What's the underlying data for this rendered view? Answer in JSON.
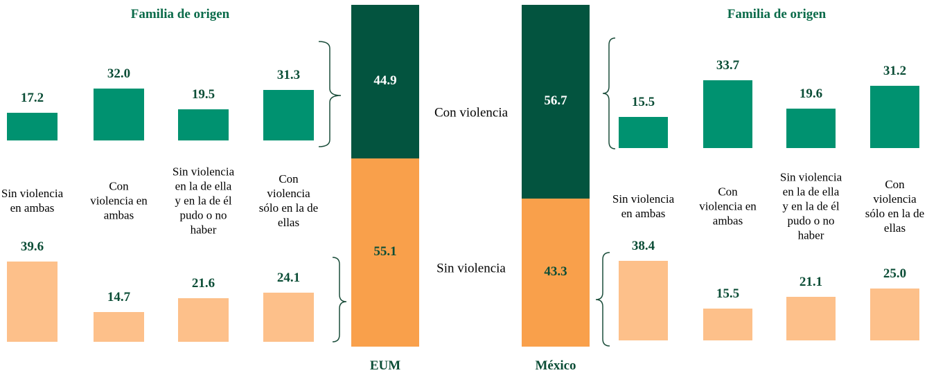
{
  "chart_data": [
    {
      "type": "bar",
      "title": "Familia de origen",
      "categories": [
        "Sin violencia en ambas",
        "Con violencia en ambas",
        "Sin violencia en la de ella y en la de él pudo o no haber",
        "Con violencia sólo en la de ellas"
      ],
      "series": [
        {
          "color": "#009270",
          "values": [
            17.2,
            32.0,
            19.5,
            31.3
          ],
          "value_labels": [
            "17.2",
            "32.0",
            "19.5",
            "31.3"
          ]
        },
        {
          "color": "#fdc08a",
          "values": [
            39.6,
            14.7,
            21.6,
            24.1
          ],
          "value_labels": [
            "39.6",
            "14.7",
            "21.6",
            "24.1"
          ]
        }
      ]
    },
    {
      "type": "stacked",
      "categories": [
        "EUM",
        "México"
      ],
      "ylim": [
        0,
        100
      ],
      "series": [
        {
          "name": "Con violencia",
          "color": "#03543f",
          "values": [
            44.9,
            56.7
          ]
        },
        {
          "name": "Sin violencia",
          "color": "#f9a04b",
          "values": [
            55.1,
            43.3
          ]
        }
      ]
    },
    {
      "type": "bar",
      "title": "Familia de origen",
      "categories": [
        "Sin violencia en ambas",
        "Con violencia en ambas",
        "Sin violencia en la de ella y en la de él pudo o no haber",
        "Con violencia sólo en la de ellas"
      ],
      "series": [
        {
          "color": "#009270",
          "values": [
            15.5,
            33.7,
            19.6,
            31.2
          ],
          "value_labels": [
            "15.5",
            "33.7",
            "19.6",
            "31.2"
          ]
        },
        {
          "color": "#fdc08a",
          "values": [
            38.4,
            15.5,
            21.1,
            25.0
          ],
          "value_labels": [
            "38.4",
            "15.5",
            "21.1",
            "25.0"
          ]
        }
      ]
    }
  ]
}
